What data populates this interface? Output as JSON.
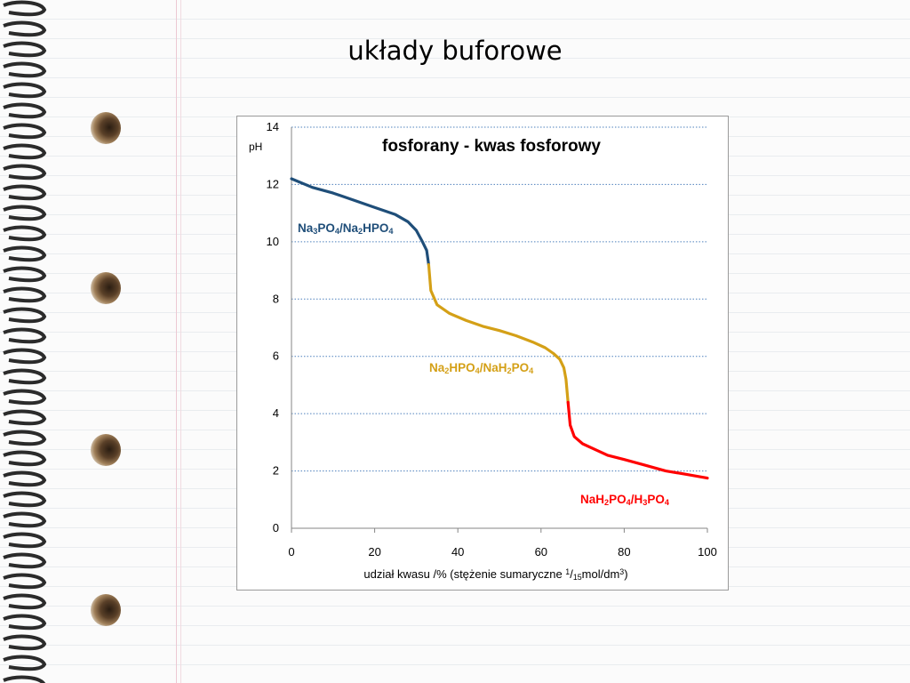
{
  "slide": {
    "title": "układy buforowe"
  },
  "chart_data": {
    "type": "line",
    "title": "fosforany - kwas fosforowy",
    "ylabel": "pH",
    "xlabel": "udział kwasu /% (stężenie sumaryczne 1/15mol/dm3)",
    "xlim": [
      0,
      100
    ],
    "ylim": [
      0,
      14
    ],
    "x_ticks": [
      0,
      20,
      40,
      60,
      80,
      100
    ],
    "y_ticks": [
      0,
      2,
      4,
      6,
      8,
      10,
      12,
      14
    ],
    "grid": "horizontal dotted",
    "series": [
      {
        "name": "Na3PO4/Na2HPO4",
        "color": "#1f4e79",
        "x": [
          0,
          5,
          10,
          15,
          20,
          25,
          28,
          30,
          31.5,
          32.5,
          33
        ],
        "y": [
          12.2,
          11.9,
          11.7,
          11.45,
          11.2,
          10.95,
          10.7,
          10.4,
          10.0,
          9.7,
          9.2
        ]
      },
      {
        "name": "Na2HPO4/NaH2PO4",
        "color": "#d4a017",
        "x": [
          33,
          33.5,
          35,
          38,
          42,
          46,
          50,
          54,
          58,
          61,
          63,
          64.5,
          65.5,
          66,
          66.5
        ],
        "y": [
          9.2,
          8.3,
          7.8,
          7.5,
          7.25,
          7.05,
          6.9,
          6.72,
          6.5,
          6.3,
          6.1,
          5.9,
          5.6,
          5.2,
          4.4
        ]
      },
      {
        "name": "NaH2PO4/H3PO4",
        "color": "#ff0000",
        "x": [
          66.5,
          67,
          68,
          70,
          73,
          76,
          80,
          85,
          90,
          95,
          100
        ],
        "y": [
          4.4,
          3.6,
          3.2,
          2.95,
          2.75,
          2.55,
          2.4,
          2.2,
          2.0,
          1.88,
          1.75
        ]
      }
    ],
    "series_labels": [
      {
        "parts": [
          [
            "Na",
            ""
          ],
          [
            "3",
            "sub"
          ],
          [
            "PO",
            ""
          ],
          [
            "4",
            "sub"
          ],
          [
            "/Na",
            ""
          ],
          [
            "2",
            "sub"
          ],
          [
            "HPO",
            ""
          ],
          [
            "4",
            "sub"
          ]
        ],
        "color": "#1f4e79"
      },
      {
        "parts": [
          [
            "Na",
            ""
          ],
          [
            "2",
            "sub"
          ],
          [
            "HPO",
            ""
          ],
          [
            "4",
            "sub"
          ],
          [
            "/NaH",
            ""
          ],
          [
            "2",
            "sub"
          ],
          [
            "PO",
            ""
          ],
          [
            "4",
            "sub"
          ]
        ],
        "color": "#d4a017"
      },
      {
        "parts": [
          [
            "NaH",
            ""
          ],
          [
            "2",
            "sub"
          ],
          [
            "PO",
            ""
          ],
          [
            "4",
            "sub"
          ],
          [
            "/H",
            ""
          ],
          [
            "3",
            "sub"
          ],
          [
            "PO",
            ""
          ],
          [
            "4",
            "sub"
          ]
        ],
        "color": "#ff0000"
      }
    ],
    "xlabel_parts": [
      [
        "udział kwasu  /% (stężenie sumaryczne ",
        ""
      ],
      [
        "1",
        "sup"
      ],
      [
        "/",
        ""
      ],
      [
        "15",
        "sub"
      ],
      [
        "mol/dm",
        ""
      ],
      [
        "3",
        "sup"
      ],
      [
        ")",
        ""
      ]
    ]
  }
}
